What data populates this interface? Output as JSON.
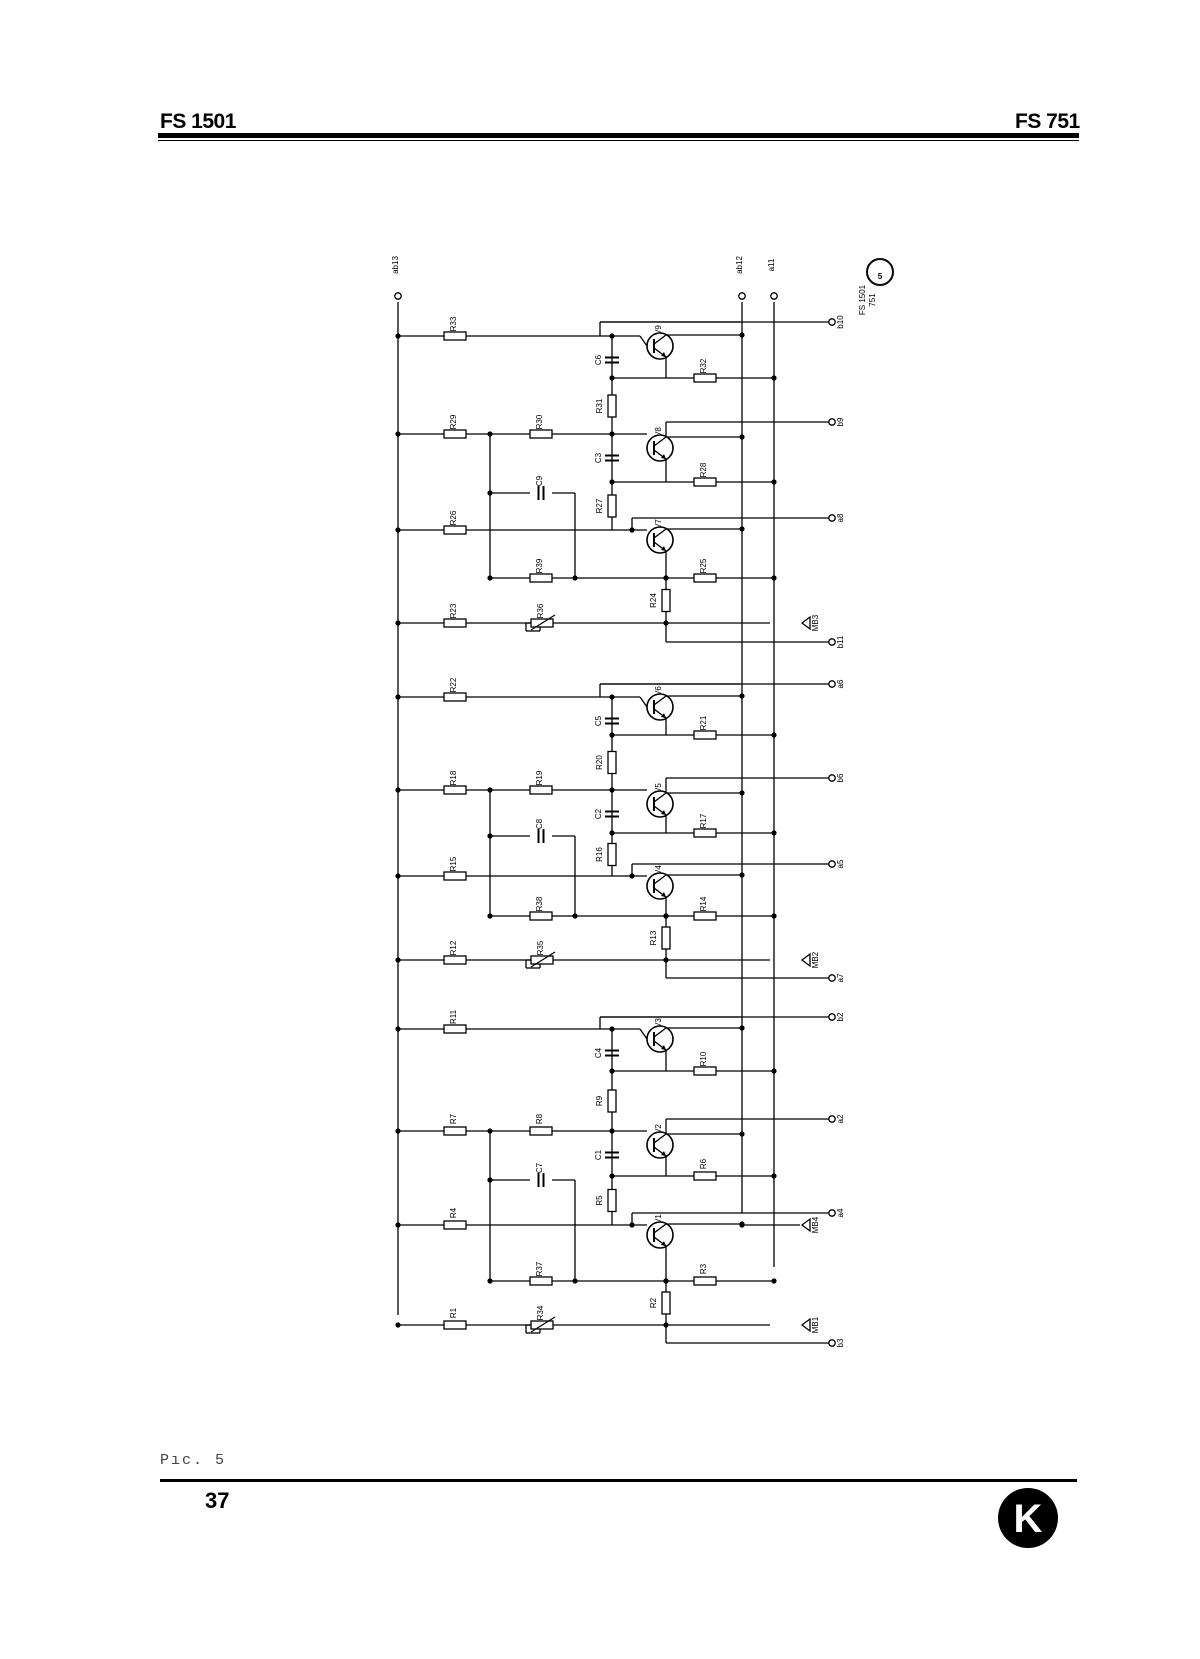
{
  "header": {
    "left": "FS 1501",
    "right": "FS 751"
  },
  "footer": {
    "caption": "Pıc. 5",
    "page_number": "37"
  },
  "badge": {
    "text": "FS 1501\n751",
    "circled": "5"
  },
  "terminals": {
    "top": [
      "ab13",
      "ab12",
      "a11"
    ],
    "right": [
      "b10",
      "b9",
      "a8",
      "MB3",
      "b11",
      "a6",
      "b6",
      "a5",
      "MB2",
      "a7",
      "b2",
      "a2",
      "a4",
      "MB4",
      "MB1",
      "b3"
    ]
  },
  "resistors": [
    "R33",
    "R29",
    "R30",
    "R26",
    "R23",
    "R36",
    "R22",
    "R18",
    "R19",
    "R15",
    "R12",
    "R35",
    "R11",
    "R7",
    "R8",
    "R4",
    "R1",
    "R34",
    "R31",
    "R27",
    "R24",
    "R20",
    "R16",
    "R13",
    "R9",
    "R5",
    "R2",
    "R32",
    "R28",
    "R25",
    "R21",
    "R17",
    "R14",
    "R10",
    "R6",
    "R3",
    "R39",
    "R38",
    "R37"
  ],
  "capacitors": [
    "C6",
    "C3",
    "C9",
    "C5",
    "C2",
    "C8",
    "C4",
    "C1",
    "C7"
  ],
  "transistors": [
    "V9",
    "V8",
    "V7",
    "V6",
    "V5",
    "V4",
    "V3",
    "V2",
    "V1"
  ],
  "logo": "K"
}
